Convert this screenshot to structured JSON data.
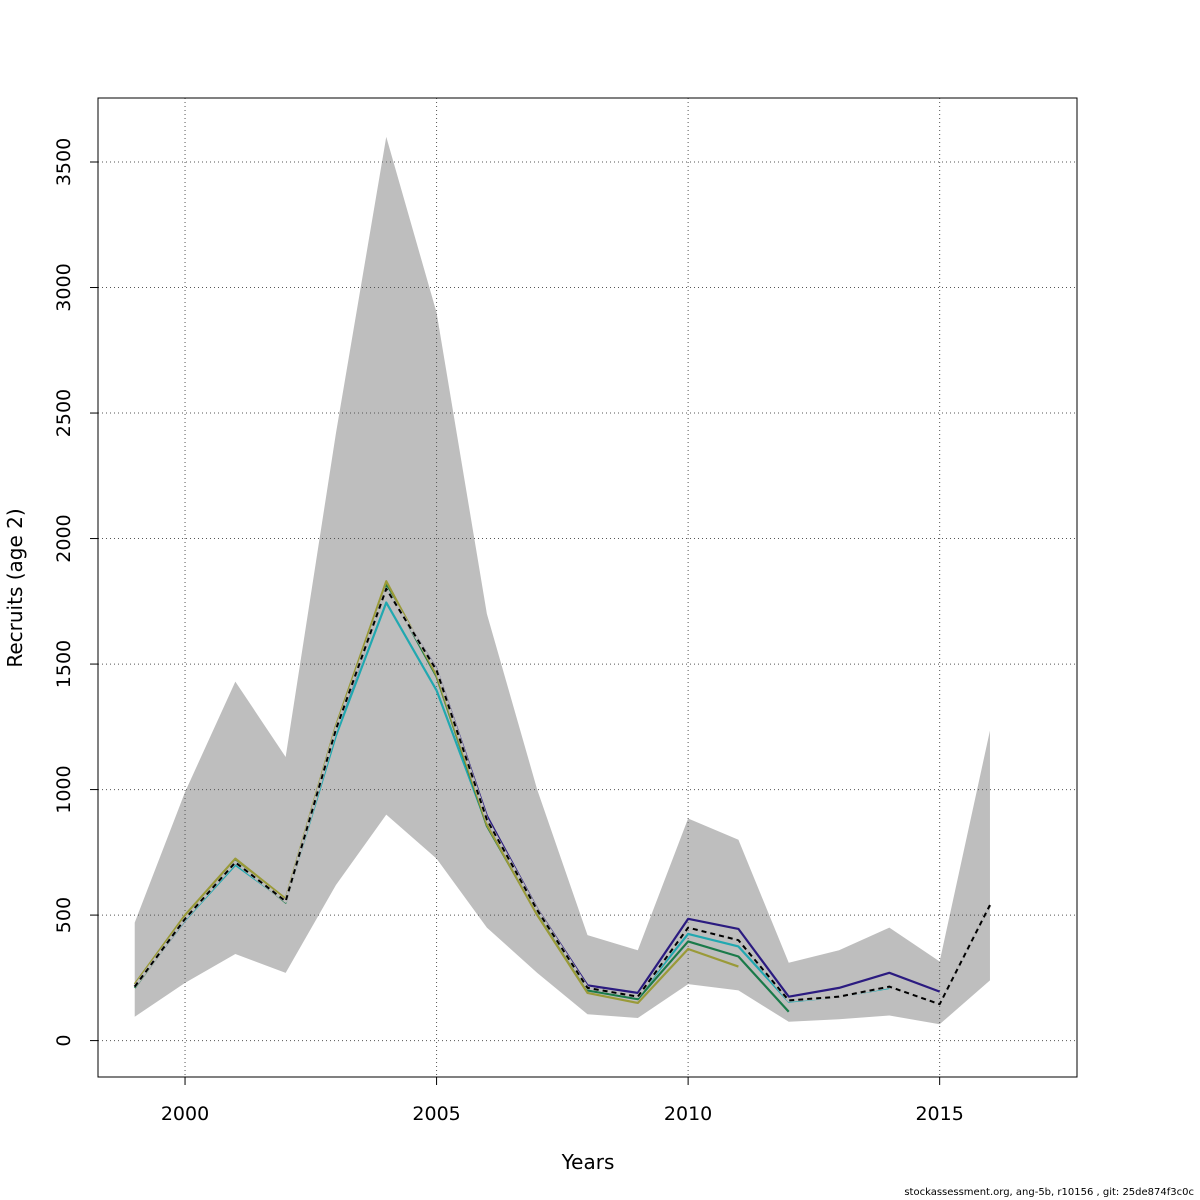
{
  "chart_data": {
    "type": "line",
    "title": "",
    "xlabel": "Years",
    "ylabel": "Recruits (age 2)",
    "xlim": [
      1998.27,
      2017.73
    ],
    "ylim": [
      -145,
      3755
    ],
    "x_ticks": [
      2000,
      2005,
      2010,
      2015
    ],
    "y_ticks": [
      0,
      500,
      1000,
      1500,
      2000,
      2500,
      3000,
      3500
    ],
    "grid": true,
    "band": {
      "color": "#bebebe",
      "x": [
        1999,
        2000,
        2001,
        2002,
        2003,
        2004,
        2005,
        2006,
        2007,
        2008,
        2009,
        2010,
        2011,
        2012,
        2013,
        2014,
        2015,
        2016
      ],
      "upper": [
        470,
        990,
        1430,
        1130,
        2420,
        3600,
        2900,
        1700,
        1000,
        420,
        360,
        885,
        800,
        310,
        360,
        450,
        315,
        1235
      ],
      "lower": [
        95,
        230,
        345,
        270,
        620,
        900,
        725,
        450,
        270,
        105,
        90,
        225,
        200,
        75,
        85,
        100,
        65,
        240
      ]
    },
    "series": [
      {
        "color": "#2b1b80",
        "dashed": false,
        "x": [
          1999,
          2000,
          2001,
          2002,
          2003,
          2004,
          2005,
          2006,
          2007,
          2008,
          2009,
          2010,
          2011,
          2012,
          2013,
          2014,
          2015
        ],
        "values": [
          215,
          480,
          705,
          555,
          1230,
          1800,
          1480,
          895,
          525,
          220,
          190,
          485,
          445,
          175,
          210,
          270,
          195
        ]
      },
      {
        "color": "#21a8b0",
        "dashed": false,
        "x": [
          1999,
          2000,
          2001,
          2002,
          2003,
          2004,
          2005,
          2006,
          2007,
          2008,
          2009,
          2010,
          2011,
          2012,
          2013,
          2014
        ],
        "values": [
          215,
          480,
          700,
          555,
          1215,
          1745,
          1395,
          860,
          515,
          210,
          175,
          425,
          375,
          155,
          175,
          210
        ]
      },
      {
        "color": "#1a7a4a",
        "dashed": false,
        "x": [
          1999,
          2000,
          2001,
          2002,
          2003,
          2004,
          2005,
          2006,
          2007,
          2008,
          2009,
          2010,
          2011,
          2012
        ],
        "values": [
          210,
          485,
          715,
          550,
          1245,
          1815,
          1450,
          855,
          505,
          200,
          165,
          395,
          335,
          115
        ]
      },
      {
        "color": "#9a9a38",
        "dashed": false,
        "x": [
          1999,
          2000,
          2001,
          2002,
          2003,
          2004,
          2005,
          2006,
          2007,
          2008,
          2009,
          2010,
          2011
        ],
        "values": [
          225,
          500,
          725,
          565,
          1255,
          1830,
          1455,
          860,
          500,
          190,
          150,
          365,
          295
        ]
      },
      {
        "color": "#000000",
        "dashed": true,
        "x": [
          1999,
          2000,
          2001,
          2002,
          2003,
          2004,
          2005,
          2006,
          2007,
          2008,
          2009,
          2010,
          2011,
          2012,
          2013,
          2014,
          2015,
          2016
        ],
        "values": [
          215,
          485,
          710,
          555,
          1240,
          1800,
          1475,
          880,
          520,
          210,
          175,
          450,
          400,
          160,
          175,
          215,
          145,
          540
        ]
      }
    ]
  },
  "footer": "stockassessment.org, ang-5b, r10156 , git: 25de874f3c0c"
}
